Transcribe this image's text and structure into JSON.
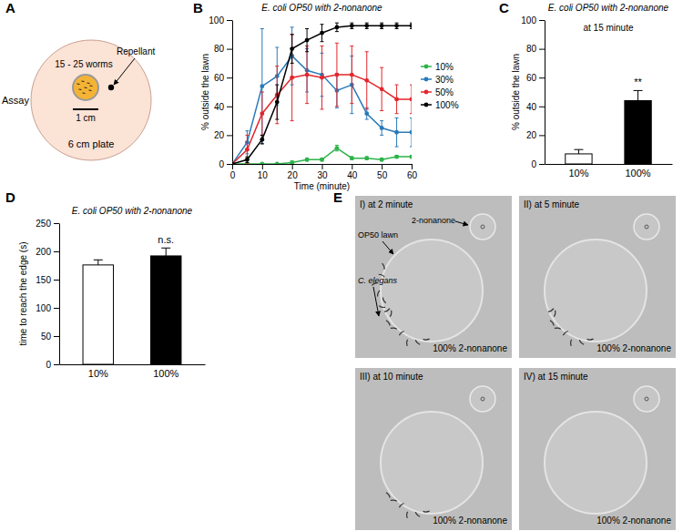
{
  "panel_labels": [
    "A",
    "B",
    "C",
    "D",
    "E"
  ],
  "diagram": {
    "side_label": "Assay",
    "worms_label": "15 - 25 worms",
    "repellant_label": "Repellant",
    "scale_label": "1 cm",
    "plate_label": "6 cm plate"
  },
  "images": {
    "panels": [
      {
        "label": "I) at 2 minute",
        "caption": "100% 2-nonanone"
      },
      {
        "label": "II) at 5 minute",
        "caption": "100% 2-nonanone"
      },
      {
        "label": "III) at 10 minute",
        "caption": "100% 2-nonanone"
      },
      {
        "label": "IV) at 15 minute",
        "caption": "100% 2-nonanone"
      }
    ],
    "annotations": [
      "2-nonanone",
      "OP50 lawn",
      "C. elegans"
    ]
  },
  "chart_data": [
    {
      "type": "line",
      "title": "E. coli OP50 with 2-nonanone",
      "x_label": "Time (minute)",
      "y_label": "% outside the lawn",
      "x": [
        0,
        5,
        10,
        15,
        20,
        25,
        30,
        35,
        40,
        45,
        50,
        55,
        60
      ],
      "xlim": [
        0,
        60
      ],
      "xticks": [
        0,
        10,
        20,
        30,
        40,
        50,
        60
      ],
      "ylim": [
        0,
        100
      ],
      "yticks": [
        0,
        20,
        40,
        60,
        80,
        100
      ],
      "grid": false,
      "legend": "right",
      "marker": "circle",
      "series": [
        {
          "name": "10%",
          "color": "#2db34a",
          "values": [
            0,
            0,
            0,
            0,
            1,
            3,
            3,
            11,
            4,
            4,
            3,
            5,
            5
          ],
          "errors": [
            0,
            0,
            0,
            0,
            1,
            1,
            1,
            2,
            1,
            1,
            1,
            1,
            1
          ]
        },
        {
          "name": "30%",
          "color": "#2a7ab8",
          "values": [
            0,
            15,
            54,
            61,
            75,
            65,
            62,
            51,
            55,
            35,
            25,
            22,
            22
          ],
          "errors": [
            0,
            8,
            40,
            20,
            20,
            15,
            15,
            12,
            20,
            4,
            5,
            10,
            10
          ]
        },
        {
          "name": "50%",
          "color": "#e3262c",
          "values": [
            0,
            10,
            35,
            48,
            60,
            62,
            60,
            62,
            62,
            58,
            52,
            45,
            45
          ],
          "errors": [
            0,
            10,
            15,
            20,
            30,
            20,
            22,
            22,
            20,
            20,
            15,
            10,
            10
          ]
        },
        {
          "name": "100%",
          "color": "#000000",
          "values": [
            0,
            3,
            17,
            43,
            80,
            86,
            91,
            95,
            96,
            96,
            96,
            96,
            96
          ],
          "errors": [
            0,
            2,
            3,
            12,
            10,
            8,
            6,
            3,
            2,
            2,
            2,
            2,
            2
          ]
        }
      ]
    },
    {
      "type": "bar",
      "title": "E. coli OP50 with 2-nonanone",
      "subtitle": "at 15 minute",
      "y_label": "% outside the lawn",
      "categories": [
        "10%",
        "100%"
      ],
      "values": [
        7,
        44
      ],
      "errors": [
        3,
        7
      ],
      "colors": [
        "#ffffff",
        "#000000"
      ],
      "ylim": [
        0,
        100
      ],
      "yticks": [
        0,
        20,
        40,
        60,
        80,
        100
      ],
      "grid": false,
      "annotations": [
        {
          "text": "**",
          "index": 1
        }
      ]
    },
    {
      "type": "bar",
      "title": "E. coli OP50 with 2-nonanone",
      "y_label": "time to reach the edge (s)",
      "categories": [
        "10%",
        "100%"
      ],
      "values": [
        176,
        192
      ],
      "errors": [
        9,
        14
      ],
      "colors": [
        "#ffffff",
        "#000000"
      ],
      "ylim": [
        0,
        250
      ],
      "yticks": [
        0,
        50,
        100,
        150,
        200,
        250
      ],
      "grid": false,
      "annotations": [
        {
          "text": "n.s.",
          "index": 1
        }
      ]
    }
  ]
}
